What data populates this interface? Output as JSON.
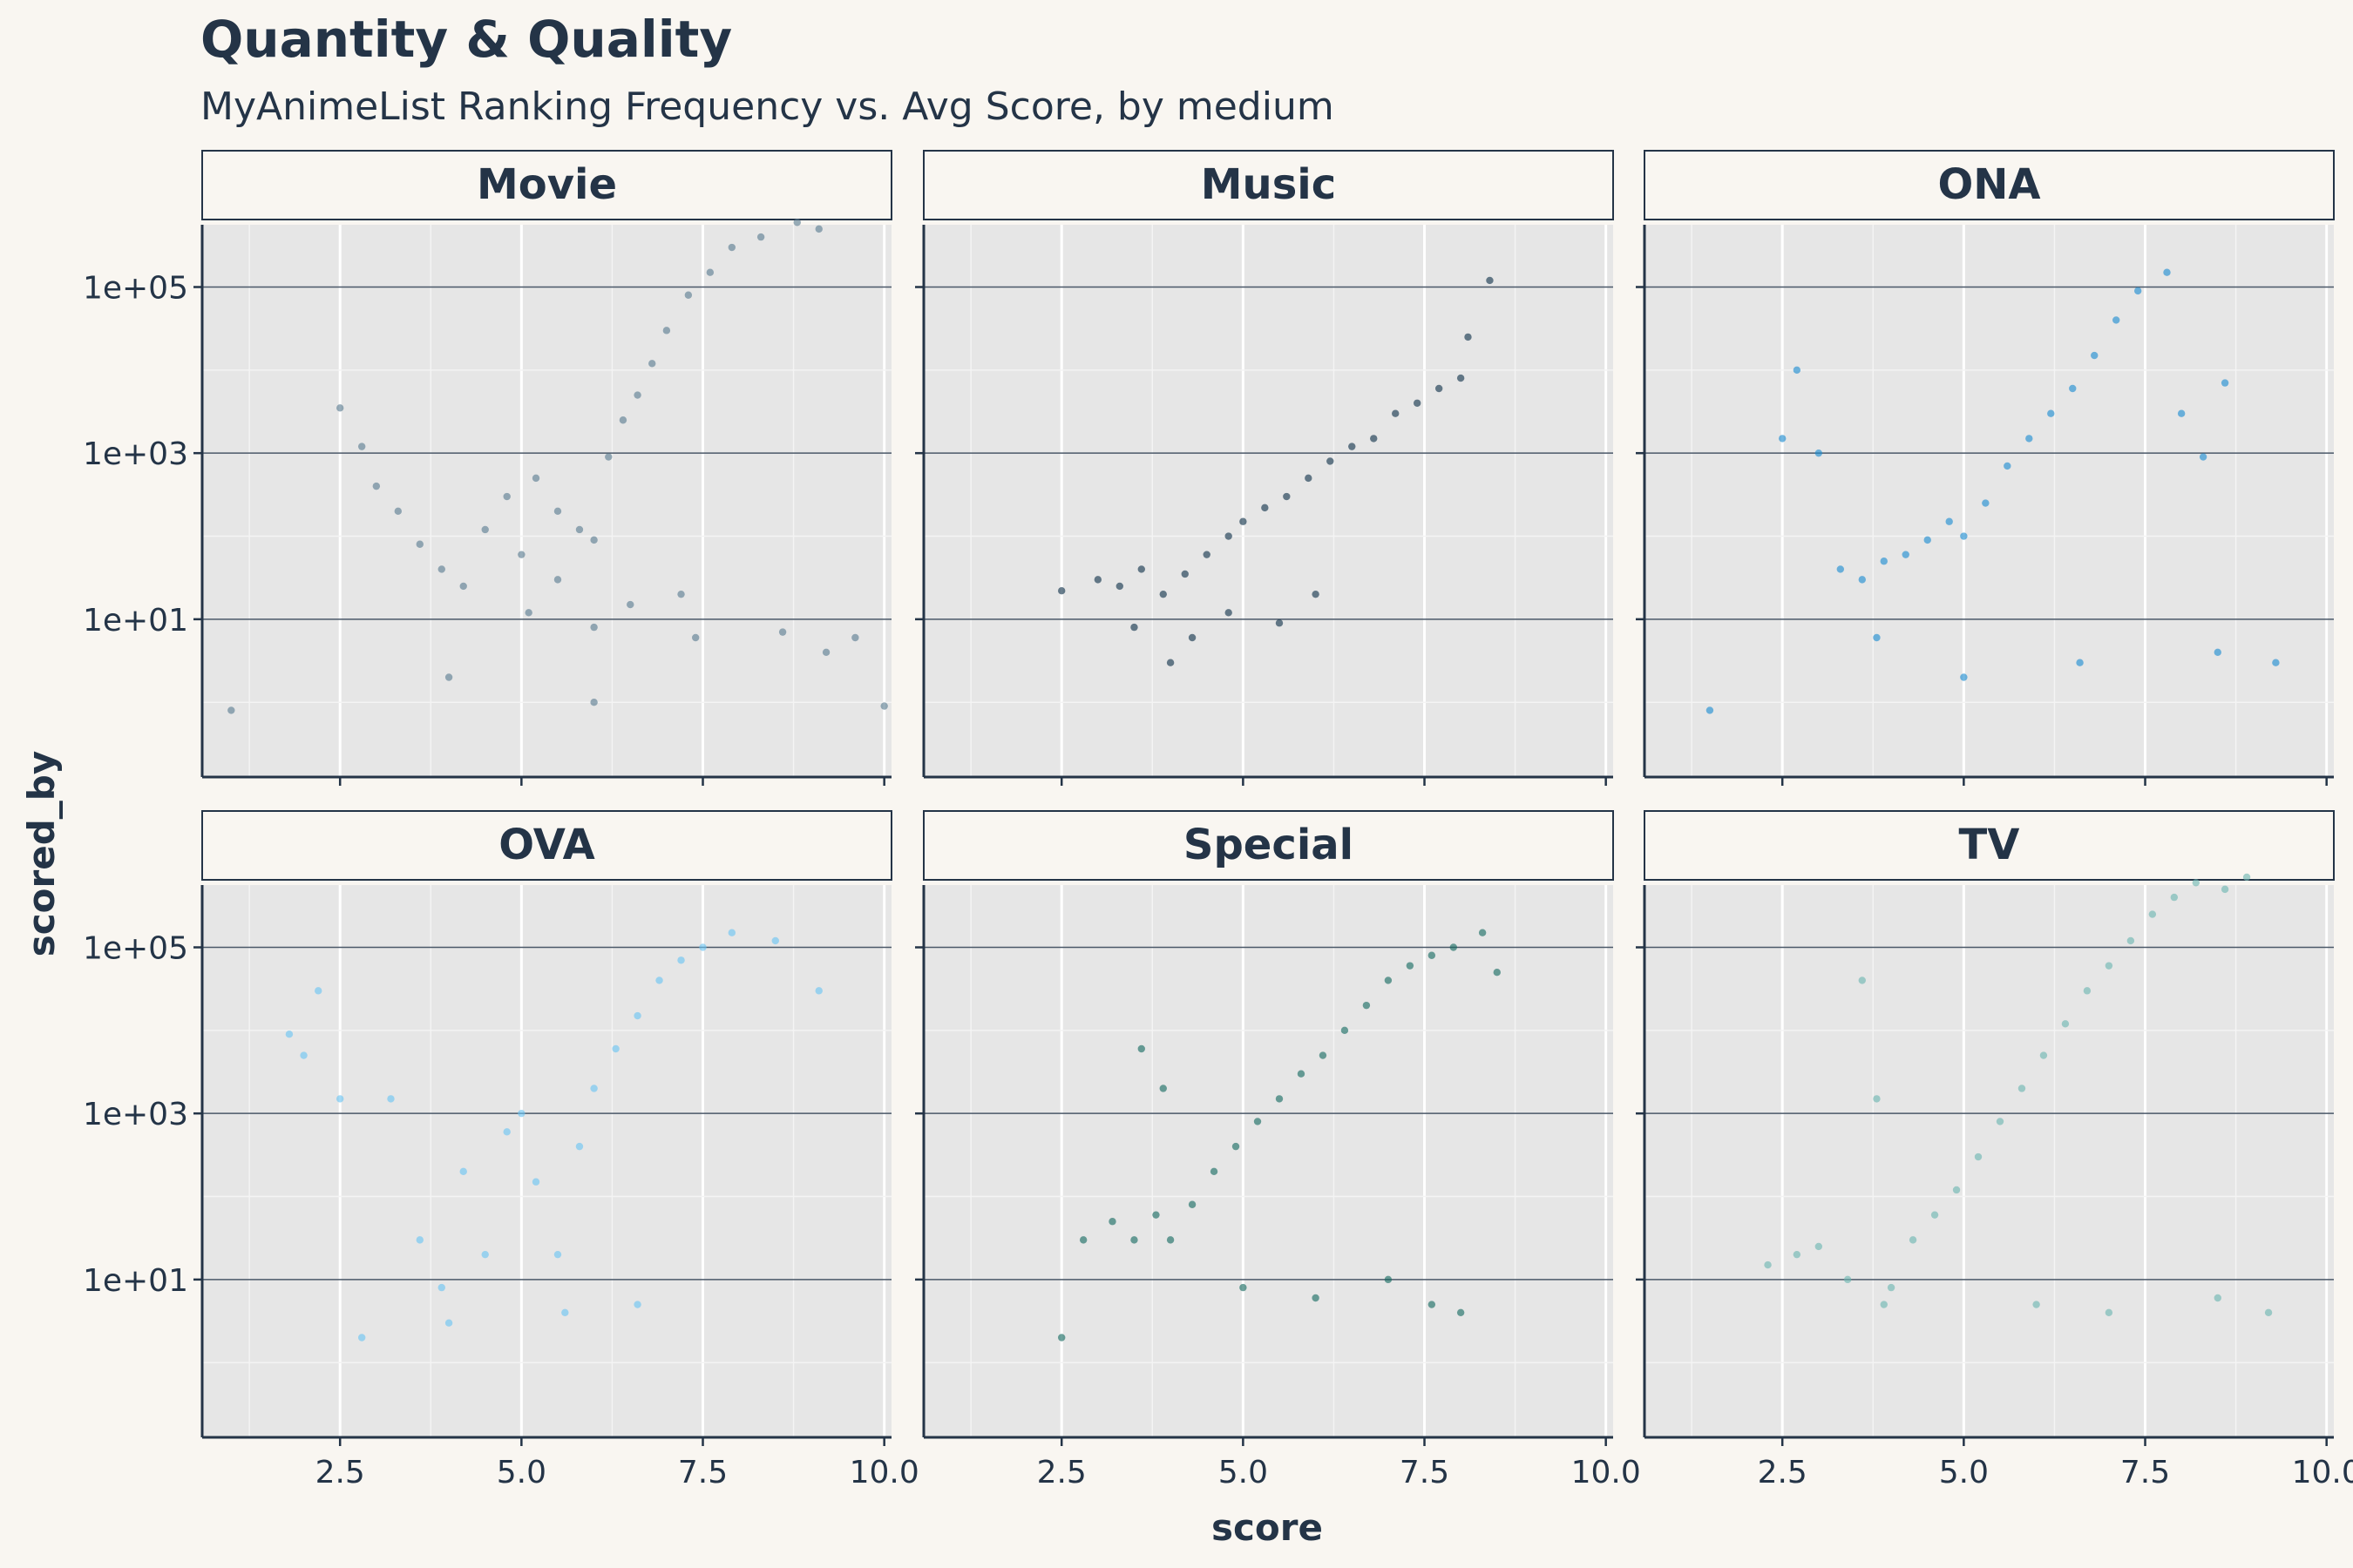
{
  "title": "Quantity & Quality",
  "subtitle": "MyAnimeList Ranking Frequency vs. Avg Score, by medium",
  "chart_data": {
    "type": "scatter",
    "xlabel": "score",
    "ylabel": "scored_by",
    "xlim": [
      0.6,
      10.1
    ],
    "ylim_log10": [
      -0.9,
      5.75
    ],
    "y_scale": "log10",
    "x_ticks": [
      2.5,
      5.0,
      7.5,
      10.0
    ],
    "x_tick_labels": [
      "2.5",
      "5.0",
      "7.5",
      "10.0"
    ],
    "y_ticks": [
      10,
      1000,
      100000
    ],
    "y_tick_labels": [
      "1e+01",
      "1e+03",
      "1e+05"
    ],
    "grid": true,
    "panels": [
      {
        "name": "Movie",
        "color": "#587b8f",
        "points": [
          [
            1.0,
            0.8
          ],
          [
            2.5,
            3500
          ],
          [
            2.8,
            1200
          ],
          [
            3.0,
            400
          ],
          [
            3.3,
            200
          ],
          [
            3.6,
            80
          ],
          [
            3.9,
            40
          ],
          [
            4.2,
            25
          ],
          [
            4.5,
            120
          ],
          [
            4.8,
            300
          ],
          [
            5.0,
            60
          ],
          [
            5.2,
            500
          ],
          [
            5.5,
            200
          ],
          [
            5.8,
            120
          ],
          [
            6.0,
            90
          ],
          [
            6.2,
            900
          ],
          [
            6.4,
            2500
          ],
          [
            6.6,
            5000
          ],
          [
            6.8,
            12000
          ],
          [
            7.0,
            30000
          ],
          [
            7.3,
            80000
          ],
          [
            7.6,
            150000
          ],
          [
            7.9,
            300000
          ],
          [
            8.3,
            400000
          ],
          [
            8.8,
            600000
          ],
          [
            9.1,
            500000
          ],
          [
            9.2,
            4
          ],
          [
            10.0,
            0.9
          ],
          [
            5.1,
            12
          ],
          [
            6.0,
            8
          ],
          [
            7.4,
            6
          ],
          [
            8.6,
            7
          ],
          [
            9.6,
            6
          ],
          [
            4.0,
            2
          ],
          [
            6.0,
            1
          ],
          [
            5.5,
            30
          ],
          [
            6.5,
            15
          ],
          [
            7.2,
            20
          ]
        ]
      },
      {
        "name": "Music",
        "color": "#0f3049",
        "points": [
          [
            3.0,
            30
          ],
          [
            3.3,
            25
          ],
          [
            3.6,
            40
          ],
          [
            3.9,
            20
          ],
          [
            4.2,
            35
          ],
          [
            4.5,
            60
          ],
          [
            4.8,
            100
          ],
          [
            5.0,
            150
          ],
          [
            5.3,
            220
          ],
          [
            5.6,
            300
          ],
          [
            5.9,
            500
          ],
          [
            6.2,
            800
          ],
          [
            6.5,
            1200
          ],
          [
            6.8,
            1500
          ],
          [
            7.1,
            3000
          ],
          [
            7.4,
            4000
          ],
          [
            7.7,
            6000
          ],
          [
            8.0,
            8000
          ],
          [
            8.4,
            120000
          ],
          [
            8.1,
            25000
          ],
          [
            3.5,
            8
          ],
          [
            4.3,
            6
          ],
          [
            4.8,
            12
          ],
          [
            5.5,
            9
          ],
          [
            6.0,
            20
          ],
          [
            2.5,
            22
          ],
          [
            4.0,
            3
          ]
        ]
      },
      {
        "name": "ONA",
        "color": "#1a8ad0",
        "points": [
          [
            1.5,
            0.8
          ],
          [
            2.7,
            10000
          ],
          [
            2.5,
            1500
          ],
          [
            3.0,
            1000
          ],
          [
            3.3,
            40
          ],
          [
            3.6,
            30
          ],
          [
            3.9,
            50
          ],
          [
            4.2,
            60
          ],
          [
            4.5,
            90
          ],
          [
            4.8,
            150
          ],
          [
            5.0,
            100
          ],
          [
            5.3,
            250
          ],
          [
            5.6,
            700
          ],
          [
            5.9,
            1500
          ],
          [
            6.2,
            3000
          ],
          [
            6.5,
            6000
          ],
          [
            6.8,
            15000
          ],
          [
            7.1,
            40000
          ],
          [
            7.4,
            90000
          ],
          [
            7.8,
            150000
          ],
          [
            8.0,
            3000
          ],
          [
            8.3,
            900
          ],
          [
            8.6,
            7000
          ],
          [
            9.3,
            3
          ],
          [
            8.5,
            4
          ],
          [
            3.8,
            6
          ],
          [
            5.0,
            2
          ],
          [
            6.6,
            3
          ]
        ]
      },
      {
        "name": "OVA",
        "color": "#69c4f2",
        "points": [
          [
            1.8,
            9000
          ],
          [
            2.0,
            5000
          ],
          [
            2.2,
            30000
          ],
          [
            2.5,
            1500
          ],
          [
            2.8,
            2
          ],
          [
            3.2,
            1500
          ],
          [
            3.6,
            30
          ],
          [
            3.9,
            8
          ],
          [
            4.2,
            200
          ],
          [
            4.5,
            20
          ],
          [
            4.8,
            600
          ],
          [
            5.0,
            1000
          ],
          [
            5.2,
            150
          ],
          [
            5.5,
            20
          ],
          [
            5.8,
            400
          ],
          [
            6.0,
            2000
          ],
          [
            6.3,
            6000
          ],
          [
            6.6,
            15000
          ],
          [
            6.9,
            40000
          ],
          [
            7.2,
            70000
          ],
          [
            7.5,
            100000
          ],
          [
            7.9,
            150000
          ],
          [
            8.5,
            120000
          ],
          [
            9.1,
            30000
          ],
          [
            5.6,
            4
          ],
          [
            6.6,
            5
          ],
          [
            4.0,
            3
          ]
        ]
      },
      {
        "name": "Special",
        "color": "#13695f",
        "points": [
          [
            2.5,
            2
          ],
          [
            2.8,
            30
          ],
          [
            3.2,
            50
          ],
          [
            3.5,
            30
          ],
          [
            3.8,
            60
          ],
          [
            4.0,
            30
          ],
          [
            4.3,
            80
          ],
          [
            4.6,
            200
          ],
          [
            4.9,
            400
          ],
          [
            5.2,
            800
          ],
          [
            5.5,
            1500
          ],
          [
            5.8,
            3000
          ],
          [
            6.1,
            5000
          ],
          [
            6.4,
            10000
          ],
          [
            6.7,
            20000
          ],
          [
            7.0,
            40000
          ],
          [
            7.3,
            60000
          ],
          [
            7.6,
            80000
          ],
          [
            7.9,
            100000
          ],
          [
            8.3,
            150000
          ],
          [
            8.5,
            50000
          ],
          [
            5.0,
            8
          ],
          [
            6.0,
            6
          ],
          [
            7.0,
            10
          ],
          [
            7.6,
            5
          ],
          [
            8.0,
            4
          ],
          [
            3.6,
            6000
          ],
          [
            3.9,
            2000
          ]
        ]
      },
      {
        "name": "TV",
        "color": "#6ab4b0",
        "points": [
          [
            2.3,
            15
          ],
          [
            2.7,
            20
          ],
          [
            3.0,
            25
          ],
          [
            3.4,
            10
          ],
          [
            3.6,
            40000
          ],
          [
            3.8,
            1500
          ],
          [
            4.0,
            8
          ],
          [
            4.3,
            30
          ],
          [
            4.6,
            60
          ],
          [
            4.9,
            120
          ],
          [
            5.2,
            300
          ],
          [
            5.5,
            800
          ],
          [
            5.8,
            2000
          ],
          [
            6.1,
            5000
          ],
          [
            6.4,
            12000
          ],
          [
            6.7,
            30000
          ],
          [
            7.0,
            60000
          ],
          [
            7.3,
            120000
          ],
          [
            7.6,
            250000
          ],
          [
            7.9,
            400000
          ],
          [
            8.2,
            600000
          ],
          [
            8.6,
            500000
          ],
          [
            8.9,
            700000
          ],
          [
            9.2,
            4
          ],
          [
            8.5,
            6
          ],
          [
            6.0,
            5
          ],
          [
            7.0,
            4
          ],
          [
            3.9,
            5
          ]
        ]
      }
    ]
  }
}
